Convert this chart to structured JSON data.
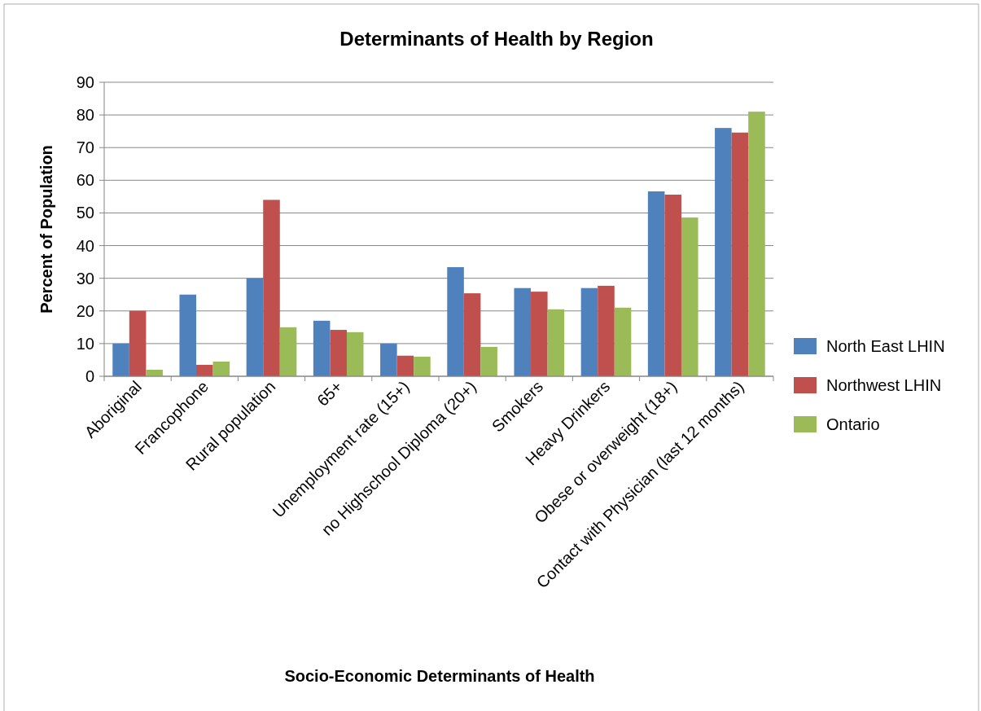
{
  "chart_data": {
    "type": "bar",
    "title": "Determinants of Health by Region",
    "xlabel": "Socio-Economic Determinants of Health",
    "ylabel": "Percent of Population",
    "categories": [
      "Aboriginal",
      "Francophone",
      "Rural population",
      "65+",
      "Unemployment rate (15+)",
      "no Highschool Diploma (20+)",
      "Smokers",
      "Heavy Drinkers",
      "Obese or overweight (18+)",
      "Contact with Physician (last 12 months)"
    ],
    "series": [
      {
        "name": "North East LHIN",
        "color": "#4f81bd",
        "values": [
          10,
          25,
          30,
          17,
          10,
          33.4,
          27,
          27,
          56.6,
          76
        ]
      },
      {
        "name": "Northwest LHIN",
        "color": "#c0504d",
        "values": [
          20,
          3.5,
          54,
          14.2,
          6.3,
          25.4,
          25.9,
          27.7,
          55.6,
          74.6
        ]
      },
      {
        "name": "Ontario",
        "color": "#9bbb59",
        "values": [
          2,
          4.5,
          15,
          13.5,
          6,
          9,
          20.5,
          21,
          48.6,
          81
        ]
      }
    ],
    "ylim": [
      0,
      90
    ],
    "yticks": [
      0,
      10,
      20,
      30,
      40,
      50,
      60,
      70,
      80,
      90
    ],
    "grid": "y",
    "legend": "right"
  }
}
